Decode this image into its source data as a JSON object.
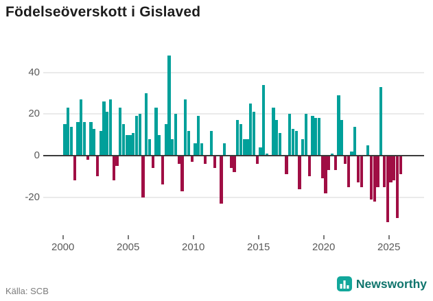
{
  "title": "Födelseöverskott i Gislaved",
  "source": "Källa: SCB",
  "logo": {
    "text": "Newsworthy",
    "icon": "bar-chart-icon",
    "icon_color": "#12a79b",
    "text_color": "#10756d"
  },
  "chart_data": {
    "type": "bar",
    "title": "Födelseöverskott i Gislaved",
    "xlabel": "",
    "ylabel": "",
    "period": "quarterly",
    "x_range": [
      "2000 Q1",
      "2025 Q4"
    ],
    "ylim": [
      -35,
      50
    ],
    "yticks": [
      40,
      20,
      0,
      -20
    ],
    "xticks": [
      2000,
      2005,
      2010,
      2015,
      2020,
      2025
    ],
    "grid": "horizontal",
    "legend": "none",
    "colors": {
      "positive": "#00a09a",
      "negative": "#a00e44"
    },
    "years": [
      {
        "year": 2000,
        "q": [
          15,
          23,
          14,
          -12
        ]
      },
      {
        "year": 2001,
        "q": [
          16,
          27,
          16,
          -2
        ]
      },
      {
        "year": 2002,
        "q": [
          16,
          13,
          -10,
          12
        ]
      },
      {
        "year": 2003,
        "q": [
          26,
          21,
          27,
          -12
        ]
      },
      {
        "year": 2004,
        "q": [
          -5,
          23,
          15,
          10
        ]
      },
      {
        "year": 2005,
        "q": [
          10,
          11,
          19,
          20
        ]
      },
      {
        "year": 2006,
        "q": [
          -20,
          30,
          8,
          -6
        ]
      },
      {
        "year": 2007,
        "q": [
          23,
          10,
          -14,
          15
        ]
      },
      {
        "year": 2008,
        "q": [
          48,
          8,
          20,
          -4
        ]
      },
      {
        "year": 2009,
        "q": [
          -17,
          27,
          12,
          -3
        ]
      },
      {
        "year": 2010,
        "q": [
          6,
          19,
          6,
          -4
        ]
      },
      {
        "year": 2011,
        "q": [
          0,
          12,
          -6,
          0
        ]
      },
      {
        "year": 2012,
        "q": [
          -23,
          6,
          0,
          -6
        ]
      },
      {
        "year": 2013,
        "q": [
          -8,
          17,
          15,
          8
        ]
      },
      {
        "year": 2014,
        "q": [
          8,
          25,
          21,
          -4
        ]
      },
      {
        "year": 2015,
        "q": [
          4,
          34,
          1,
          0
        ]
      },
      {
        "year": 2016,
        "q": [
          23,
          17,
          11,
          0
        ]
      },
      {
        "year": 2017,
        "q": [
          -9,
          20,
          13,
          12
        ]
      },
      {
        "year": 2018,
        "q": [
          -16,
          8,
          20,
          -10
        ]
      },
      {
        "year": 2019,
        "q": [
          19,
          18,
          18,
          -11
        ]
      },
      {
        "year": 2020,
        "q": [
          -18,
          -7,
          1,
          -7
        ]
      },
      {
        "year": 2021,
        "q": [
          29,
          17,
          -4,
          -15
        ]
      },
      {
        "year": 2022,
        "q": [
          2,
          14,
          -13,
          -15
        ]
      },
      {
        "year": 2023,
        "q": [
          0,
          5,
          -21,
          -22
        ]
      },
      {
        "year": 2024,
        "q": [
          -15,
          33,
          -15,
          -32
        ]
      },
      {
        "year": 2025,
        "q": [
          -13,
          -12,
          -30,
          -9
        ]
      }
    ]
  }
}
